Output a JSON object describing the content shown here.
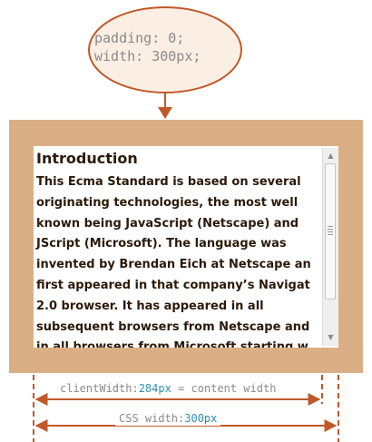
{
  "callout": {
    "line1": "padding: 0;",
    "line2": "width: 300px;"
  },
  "content": {
    "title": "Introduction",
    "lines": [
      "This Ecma Standard is based on several",
      "originating technologies, the most well",
      "known being JavaScript (Netscape) and",
      "JScript (Microsoft). The language was",
      "invented by Brendan Eich at Netscape an",
      "first appeared in that company’s Navigat",
      "2.0 browser. It has appeared in all",
      "subsequent browsers from Netscape and",
      "in all browsers from Microsoft starting w"
    ]
  },
  "client_width": {
    "prefix": "clientWidth:",
    "value": "284px",
    "suffix": " = content width"
  },
  "css_width": {
    "prefix": "CSS width:",
    "value": "300px"
  },
  "colors": {
    "outer_fill": "#dbaf85",
    "accent": "#c0592a",
    "bubble_fill": "#fbeee3",
    "value_text": "#2e8fb8",
    "label_text": "#8a8a8a"
  }
}
